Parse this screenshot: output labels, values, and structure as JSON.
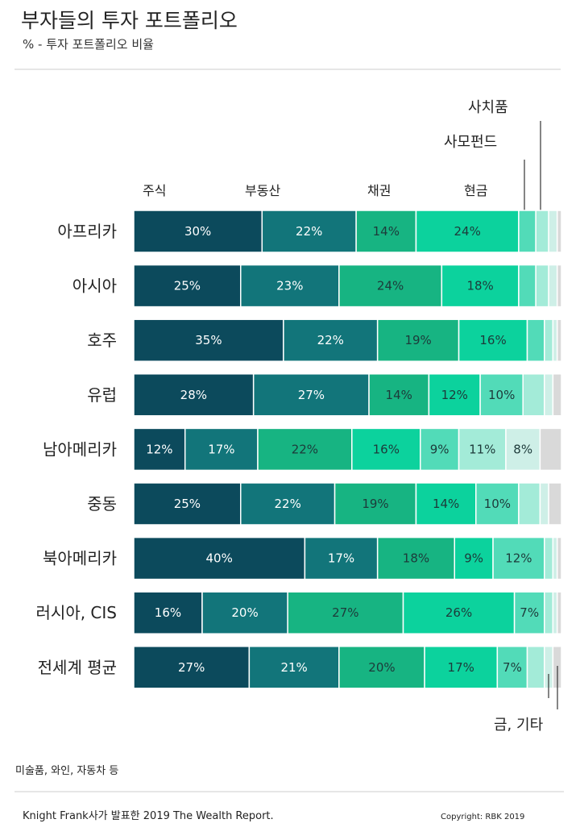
{
  "title": "부자들의 투자 포트폴리오",
  "subtitle": "% - 투자 포트폴리오 비율",
  "colors": [
    "#0c4a5c",
    "#12757a",
    "#17b482",
    "#0cd29d",
    "#52dbb8",
    "#a3ebd8",
    "#ceefe7",
    "#d9d9d9"
  ],
  "annotations": {
    "luxury": "사치품",
    "private_fund": "사모펀드",
    "gold_other": "금, 기타"
  },
  "note": "미술품, 와인, 자동차 등",
  "source": "Knight Frank사가 발표한 2019 The Wealth Report.",
  "copyright": "Copyright: RBK 2019",
  "chart_data": {
    "type": "bar",
    "orientation": "horizontal",
    "stacked": true,
    "unit": "%",
    "column_headers": [
      "주식",
      "부동산",
      "채권",
      "현금"
    ],
    "categories": [
      "아프리카",
      "아시아",
      "호주",
      "유럽",
      "남아메리카",
      "중동",
      "북아메리카",
      "러시아, CIS",
      "전세계 평균"
    ],
    "rows": [
      {
        "category": "아프리카",
        "segments": [
          30,
          22,
          14,
          24,
          4,
          3,
          2,
          1
        ],
        "labels": [
          "30%",
          "22%",
          "14%",
          "24%",
          "",
          "",
          "",
          ""
        ]
      },
      {
        "category": "아시아",
        "segments": [
          25,
          23,
          24,
          18,
          4,
          3,
          2,
          1
        ],
        "labels": [
          "25%",
          "23%",
          "24%",
          "18%",
          "",
          "",
          "",
          ""
        ]
      },
      {
        "category": "호주",
        "segments": [
          35,
          22,
          19,
          16,
          4,
          2,
          1,
          1
        ],
        "labels": [
          "35%",
          "22%",
          "19%",
          "16%",
          "",
          "",
          "",
          ""
        ]
      },
      {
        "category": "유럽",
        "segments": [
          28,
          27,
          14,
          12,
          10,
          5,
          2,
          2
        ],
        "labels": [
          "28%",
          "27%",
          "14%",
          "12%",
          "10%",
          "",
          "",
          ""
        ]
      },
      {
        "category": "남아메리카",
        "segments": [
          12,
          17,
          22,
          16,
          9,
          11,
          8,
          5
        ],
        "labels": [
          "12%",
          "17%",
          "22%",
          "16%",
          "9%",
          "11%",
          "8%",
          ""
        ]
      },
      {
        "category": "중동",
        "segments": [
          25,
          22,
          19,
          14,
          10,
          5,
          2,
          3
        ],
        "labels": [
          "25%",
          "22%",
          "19%",
          "14%",
          "10%",
          "",
          "",
          ""
        ]
      },
      {
        "category": "북아메리카",
        "segments": [
          40,
          17,
          18,
          9,
          12,
          2,
          1,
          1
        ],
        "labels": [
          "40%",
          "17%",
          "18%",
          "9%",
          "12%",
          "",
          "",
          ""
        ]
      },
      {
        "category": "러시아, CIS",
        "segments": [
          16,
          20,
          27,
          26,
          7,
          2,
          1,
          1
        ],
        "labels": [
          "16%",
          "20%",
          "27%",
          "26%",
          "7%",
          "",
          "",
          ""
        ]
      },
      {
        "category": "전세계 평균",
        "segments": [
          27,
          21,
          20,
          17,
          7,
          4,
          2,
          2
        ],
        "labels": [
          "27%",
          "21%",
          "20%",
          "17%",
          "7%",
          "",
          "",
          ""
        ]
      }
    ]
  }
}
